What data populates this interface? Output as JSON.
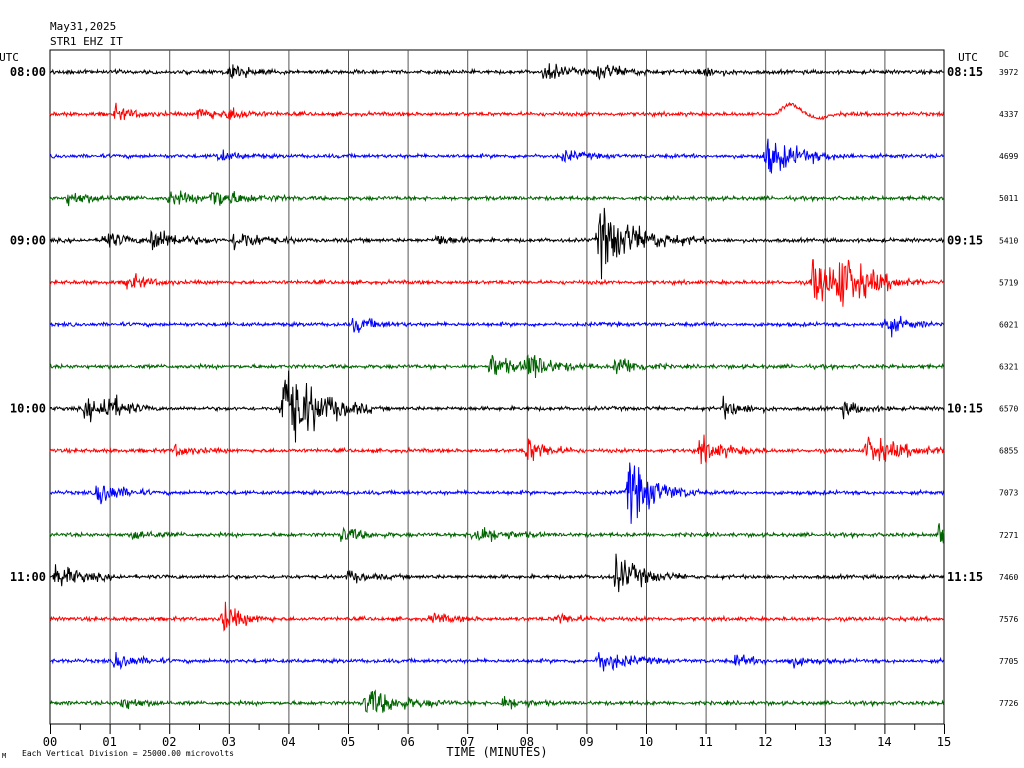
{
  "header": {
    "date": "May31,2025",
    "station": "STR1 EHZ IT"
  },
  "footer": {
    "scale_note": "Each Vertical Division = 25000.00 microvolts",
    "corner_mark": "M"
  },
  "chart_data": {
    "type": "line",
    "title": "May31,2025",
    "subtitle": "STR1 EHZ IT",
    "xlabel": "TIME (MINUTES)",
    "left_axis_title": "UTC",
    "right_axis_title": "UTC",
    "dc_title": "DC",
    "xlim": [
      0,
      15
    ],
    "x_ticks": [
      "00",
      "01",
      "02",
      "03",
      "04",
      "05",
      "06",
      "07",
      "08",
      "09",
      "10",
      "11",
      "12",
      "13",
      "14",
      "15"
    ],
    "grid": "vertical",
    "colors": [
      "#000000",
      "#ff0000",
      "#0000ff",
      "#006400"
    ],
    "traces": [
      {
        "left": "08:00",
        "right": "08:15",
        "dc": "3972",
        "color": "#000000",
        "events": [
          {
            "t": 3.0,
            "a": 5,
            "d": 0.3
          },
          {
            "t": 8.3,
            "a": 7,
            "d": 0.3
          },
          {
            "t": 9.2,
            "a": 6,
            "d": 0.4
          },
          {
            "t": 10.9,
            "a": 4,
            "d": 0.3
          }
        ]
      },
      {
        "left": "",
        "right": "",
        "dc": "4337",
        "color": "#ff0000",
        "events": [
          {
            "t": 1.1,
            "a": 5,
            "d": 0.3
          },
          {
            "t": 2.5,
            "a": 5,
            "d": 0.3
          },
          {
            "t": 3.0,
            "a": 4,
            "d": 0.3
          }
        ],
        "wave": {
          "t": 12.2,
          "d": 1.0,
          "a": 14
        }
      },
      {
        "left": "",
        "right": "",
        "dc": "4699",
        "color": "#0000ff",
        "events": [
          {
            "t": 2.8,
            "a": 4,
            "d": 0.3
          },
          {
            "t": 8.6,
            "a": 4,
            "d": 0.3
          },
          {
            "t": 12.0,
            "a": 14,
            "d": 0.5
          }
        ]
      },
      {
        "left": "",
        "right": "",
        "dc": "5011",
        "color": "#006400",
        "events": [
          {
            "t": 0.3,
            "a": 5,
            "d": 0.4
          },
          {
            "t": 2.0,
            "a": 5,
            "d": 0.4
          },
          {
            "t": 2.7,
            "a": 7,
            "d": 0.5
          }
        ]
      },
      {
        "left": "09:00",
        "right": "09:15",
        "dc": "5410",
        "color": "#000000",
        "events": [
          {
            "t": 0.9,
            "a": 7,
            "d": 0.3
          },
          {
            "t": 1.7,
            "a": 10,
            "d": 0.4
          },
          {
            "t": 3.1,
            "a": 8,
            "d": 0.4
          },
          {
            "t": 6.5,
            "a": 5,
            "d": 0.2
          },
          {
            "t": 9.2,
            "a": 24,
            "d": 0.6
          }
        ]
      },
      {
        "left": "",
        "right": "",
        "dc": "5719",
        "color": "#ff0000",
        "events": [
          {
            "t": 1.3,
            "a": 6,
            "d": 0.3
          },
          {
            "t": 12.8,
            "a": 18,
            "d": 0.5
          },
          {
            "t": 13.2,
            "a": 16,
            "d": 0.5
          }
        ]
      },
      {
        "left": "",
        "right": "",
        "dc": "6021",
        "color": "#0000ff",
        "events": [
          {
            "t": 5.1,
            "a": 6,
            "d": 0.3
          },
          {
            "t": 14.0,
            "a": 8,
            "d": 0.3
          }
        ]
      },
      {
        "left": "",
        "right": "",
        "dc": "6321",
        "color": "#006400",
        "events": [
          {
            "t": 7.4,
            "a": 10,
            "d": 0.3
          },
          {
            "t": 8.0,
            "a": 10,
            "d": 0.4
          },
          {
            "t": 9.5,
            "a": 9,
            "d": 0.3
          }
        ]
      },
      {
        "left": "10:00",
        "right": "10:15",
        "dc": "6570",
        "color": "#000000",
        "events": [
          {
            "t": 0.6,
            "a": 8,
            "d": 0.3
          },
          {
            "t": 0.9,
            "a": 10,
            "d": 0.3
          },
          {
            "t": 3.9,
            "a": 38,
            "d": 0.5
          },
          {
            "t": 11.3,
            "a": 7,
            "d": 0.3
          },
          {
            "t": 13.3,
            "a": 5,
            "d": 0.3
          }
        ]
      },
      {
        "left": "",
        "right": "",
        "dc": "6855",
        "color": "#ff0000",
        "events": [
          {
            "t": 2.1,
            "a": 4,
            "d": 0.3
          },
          {
            "t": 8.0,
            "a": 10,
            "d": 0.3
          },
          {
            "t": 10.9,
            "a": 9,
            "d": 0.4
          },
          {
            "t": 13.7,
            "a": 10,
            "d": 0.6
          }
        ]
      },
      {
        "left": "",
        "right": "",
        "dc": "7073",
        "color": "#0000ff",
        "events": [
          {
            "t": 0.8,
            "a": 11,
            "d": 0.3
          },
          {
            "t": 9.7,
            "a": 24,
            "d": 0.4
          }
        ]
      },
      {
        "left": "",
        "right": "",
        "dc": "7271",
        "color": "#006400",
        "events": [
          {
            "t": 1.4,
            "a": 4,
            "d": 0.3
          },
          {
            "t": 4.9,
            "a": 6,
            "d": 0.3
          },
          {
            "t": 7.1,
            "a": 8,
            "d": 0.4
          },
          {
            "t": 14.9,
            "a": 10,
            "d": 0.15
          }
        ]
      },
      {
        "left": "11:00",
        "right": "11:15",
        "dc": "7460",
        "color": "#000000",
        "events": [
          {
            "t": 0.1,
            "a": 8,
            "d": 0.4
          },
          {
            "t": 5.0,
            "a": 4,
            "d": 0.3
          },
          {
            "t": 9.5,
            "a": 14,
            "d": 0.4
          }
        ]
      },
      {
        "left": "",
        "right": "",
        "dc": "7576",
        "color": "#ff0000",
        "events": [
          {
            "t": 2.9,
            "a": 11,
            "d": 0.3
          },
          {
            "t": 6.4,
            "a": 4,
            "d": 0.3
          },
          {
            "t": 8.5,
            "a": 4,
            "d": 0.3
          }
        ]
      },
      {
        "left": "",
        "right": "",
        "dc": "7705",
        "color": "#0000ff",
        "events": [
          {
            "t": 1.1,
            "a": 7,
            "d": 0.3
          },
          {
            "t": 9.2,
            "a": 9,
            "d": 0.4
          },
          {
            "t": 11.5,
            "a": 4,
            "d": 0.3
          },
          {
            "t": 12.4,
            "a": 4,
            "d": 0.3
          }
        ]
      },
      {
        "left": "",
        "right": "",
        "dc": "7726",
        "color": "#006400",
        "events": [
          {
            "t": 1.2,
            "a": 5,
            "d": 0.3
          },
          {
            "t": 5.3,
            "a": 11,
            "d": 0.5
          },
          {
            "t": 7.6,
            "a": 5,
            "d": 0.3
          }
        ]
      }
    ]
  }
}
